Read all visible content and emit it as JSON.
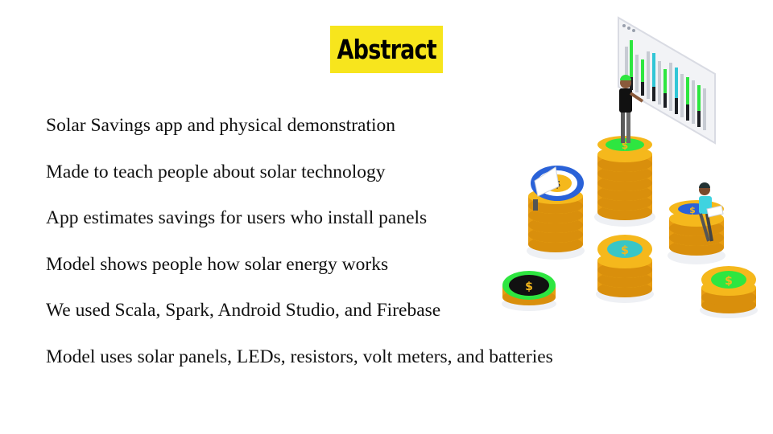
{
  "slide": {
    "title": "Abstract",
    "title_highlight_color": "#f7e51d",
    "bullets": [
      "Solar Savings app and physical demonstration",
      "Made to teach people about solar technology",
      "App estimates savings for users who install panels",
      "Model shows people how solar energy works",
      "We used Scala, Spark, Android Studio, and Firebase",
      "Model uses solar panels, LEDs, resistors, volt meters, and batteries"
    ]
  },
  "illustration": {
    "icon": "coin-stacks-illustration",
    "coin_symbol": "$",
    "colors": {
      "coin_gold": "#f5b81c",
      "coin_face_green": "#2ee640",
      "coin_face_teal": "#38c6c6",
      "coin_face_blue": "#2a62d8",
      "coin_dark": "#111111"
    }
  }
}
